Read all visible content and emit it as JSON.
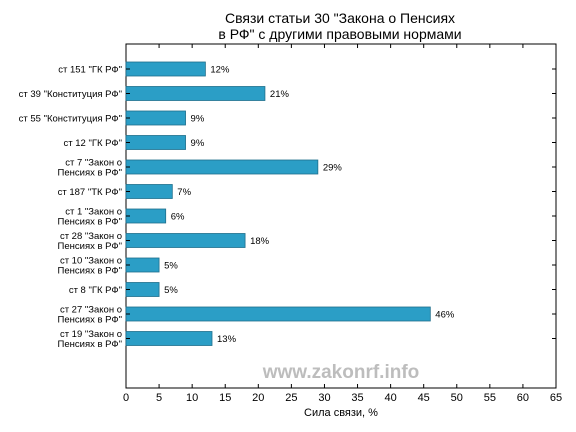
{
  "chart_data": {
    "type": "bar",
    "orientation": "horizontal",
    "title_lines": [
      "Связи статьи 30 \"Закона о Пенсиях",
      "в РФ\" с другими правовыми нормами"
    ],
    "xlabel": "Сила связи, %",
    "ylabel": "",
    "xlim": [
      0,
      65
    ],
    "xticks": [
      0,
      5,
      10,
      15,
      20,
      25,
      30,
      35,
      40,
      45,
      50,
      55,
      60,
      65
    ],
    "grid": false,
    "bar_color": "#2b9ec6",
    "bar_edge_color": "#1f6f8c",
    "watermark": "www.zakonrf.info",
    "categories": [
      [
        "ст 151 \"ГК РФ\""
      ],
      [
        "ст 39 \"Конституция РФ\""
      ],
      [
        "ст 55 \"Конституция РФ\""
      ],
      [
        "ст 12 \"ГК РФ\""
      ],
      [
        "ст 7 \"Закон о",
        "Пенсиях в РФ\""
      ],
      [
        "ст 187 \"ТК РФ\""
      ],
      [
        "ст 1 \"Закон о",
        "Пенсиях в РФ\""
      ],
      [
        "ст 28 \"Закон о",
        "Пенсиях в РФ\""
      ],
      [
        "ст 10 \"Закон о",
        "Пенсиях в РФ\""
      ],
      [
        "ст 8 \"ГК РФ\""
      ],
      [
        "ст 27 \"Закон о",
        "Пенсиях в РФ\""
      ],
      [
        "ст 19 \"Закон о",
        "Пенсиях в РФ\""
      ]
    ],
    "values": [
      12,
      21,
      9,
      9,
      29,
      7,
      6,
      18,
      5,
      5,
      46,
      13
    ],
    "value_labels": [
      "12%",
      "21%",
      "9%",
      "9%",
      "29%",
      "7%",
      "6%",
      "18%",
      "5%",
      "5%",
      "46%",
      "13%"
    ]
  }
}
